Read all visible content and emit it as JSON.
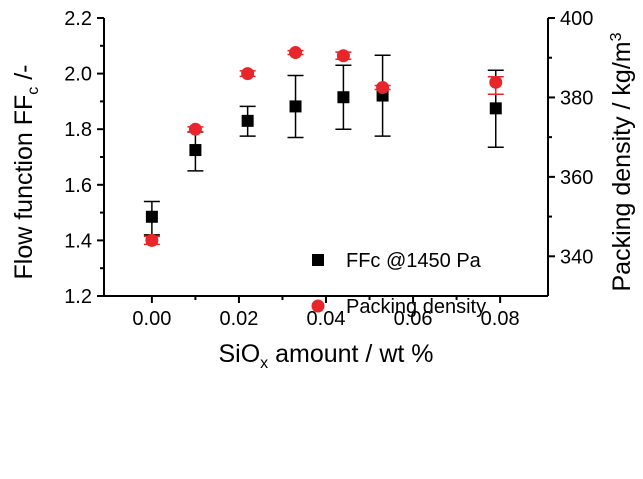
{
  "chart_data": {
    "type": "scatter",
    "xlabel": {
      "main": "SiO",
      "sub": "x",
      "rest": " amount / wt %"
    },
    "ylabel_left": {
      "main": "Flow function FF",
      "sub": "c",
      "rest": " /-"
    },
    "ylabel_right": {
      "main": "Packing density / kg/m",
      "sup": "3"
    },
    "xlim": [
      -0.011,
      0.091
    ],
    "ylim_left": [
      1.2,
      2.2
    ],
    "ylim_right": [
      330,
      400
    ],
    "xticks": [
      "0.00",
      "0.02",
      "0.04",
      "0.06",
      "0.08"
    ],
    "yticks_left": [
      "1.2",
      "1.4",
      "1.6",
      "1.8",
      "2.0",
      "2.2"
    ],
    "yticks_right": [
      "340",
      "360",
      "380",
      "400"
    ],
    "legend_position": "center-right",
    "series": [
      {
        "name": "FFc @1450 Pa",
        "axis": "left",
        "marker": "square",
        "color": "#000000",
        "x": [
          0.0,
          0.01,
          0.022,
          0.033,
          0.044,
          0.053,
          0.079
        ],
        "y": [
          1.485,
          1.725,
          1.83,
          1.882,
          1.915,
          1.921,
          1.875
        ],
        "err_low": [
          1.42,
          1.65,
          1.775,
          1.77,
          1.8,
          1.775,
          1.735
        ],
        "err_high": [
          1.54,
          1.79,
          1.882,
          1.993,
          2.03,
          2.066,
          2.012
        ]
      },
      {
        "name": "Packing density",
        "axis": "right",
        "marker": "circle",
        "color": "#e8252a",
        "x": [
          0.0,
          0.01,
          0.022,
          0.033,
          0.044,
          0.053,
          0.079
        ],
        "y": [
          344.0,
          372.0,
          386.0,
          391.3,
          390.5,
          382.5,
          383.8
        ],
        "err_low": [
          343.0,
          371.4,
          385.3,
          390.8,
          389.6,
          382.0,
          380.8
        ],
        "err_high": [
          345.0,
          372.6,
          386.7,
          391.8,
          391.4,
          383.0,
          385.2
        ]
      }
    ]
  }
}
